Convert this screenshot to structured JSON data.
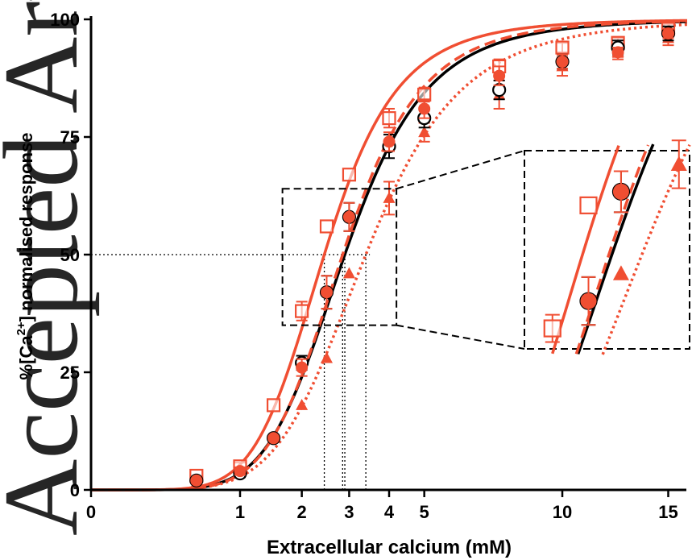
{
  "watermark": {
    "text": "Accepted Article",
    "color": "#b8c2d8"
  },
  "chart_data": {
    "type": "line",
    "ylabel_parts": {
      "prefix": "%[Ca",
      "superscript": "2+",
      "suffix": "] normalised response"
    },
    "xlabel": "Extracellular calcium (mM)",
    "x_scale": "sqrt",
    "xlim": [
      0,
      16
    ],
    "ylim": [
      0,
      100
    ],
    "x_ticks": [
      0,
      1,
      2,
      3,
      4,
      5,
      10,
      15
    ],
    "y_ticks": [
      0,
      25,
      50,
      75,
      100
    ],
    "grid": false,
    "legend": "none",
    "inset": {
      "x_range": [
        1.65,
        4.2
      ],
      "y_range": [
        35,
        64
      ]
    },
    "reference_line": {
      "y": 50
    },
    "series": [
      {
        "id": "black",
        "color": "#000000",
        "marker": "open-circle",
        "line_style": "solid",
        "ec50": 2.9,
        "hill": 3.1,
        "points": [
          {
            "x": 0.5,
            "y": 2,
            "err": 0
          },
          {
            "x": 1.0,
            "y": 3.5,
            "err": 0.8
          },
          {
            "x": 1.5,
            "y": 11,
            "err": 0
          },
          {
            "x": 2.0,
            "y": 27,
            "err": 1.5
          },
          {
            "x": 2.5,
            "y": 42,
            "err": 3.5
          },
          {
            "x": 3.0,
            "y": 58,
            "err": 3
          },
          {
            "x": 4.0,
            "y": 73,
            "err": 2.5
          },
          {
            "x": 5.0,
            "y": 79,
            "err": 2
          },
          {
            "x": 7.5,
            "y": 85,
            "err": 2
          },
          {
            "x": 10.0,
            "y": 91,
            "err": 1.5
          },
          {
            "x": 12.5,
            "y": 94,
            "err": 1.5
          },
          {
            "x": 15.0,
            "y": 97,
            "err": 1.5
          }
        ]
      },
      {
        "id": "red-filled-circle",
        "color": "#f04e32",
        "marker": "filled-circle",
        "line_style": "dashed",
        "ec50": 2.85,
        "hill": 3.2,
        "points": [
          {
            "x": 0.5,
            "y": 2,
            "err": 0
          },
          {
            "x": 1.0,
            "y": 4,
            "err": 0.8
          },
          {
            "x": 1.5,
            "y": 11,
            "err": 0
          },
          {
            "x": 2.0,
            "y": 26,
            "err": 1.8
          },
          {
            "x": 2.5,
            "y": 42,
            "err": 3.5
          },
          {
            "x": 3.0,
            "y": 58,
            "err": 3
          },
          {
            "x": 4.0,
            "y": 74,
            "err": 2
          },
          {
            "x": 5.0,
            "y": 81,
            "err": 2
          },
          {
            "x": 7.5,
            "y": 88,
            "err": 2
          },
          {
            "x": 10.0,
            "y": 91,
            "err": 1.5
          },
          {
            "x": 12.5,
            "y": 93,
            "err": 1
          },
          {
            "x": 15.0,
            "y": 97,
            "err": 1
          }
        ]
      },
      {
        "id": "red-open-square",
        "color": "#f04e32",
        "marker": "open-square",
        "line_style": "solid",
        "ec50": 2.45,
        "hill": 3.2,
        "points": [
          {
            "x": 0.5,
            "y": 3,
            "err": 0
          },
          {
            "x": 1.0,
            "y": 5,
            "err": 0.8
          },
          {
            "x": 1.5,
            "y": 18,
            "err": 0
          },
          {
            "x": 2.0,
            "y": 38,
            "err": 2
          },
          {
            "x": 2.5,
            "y": 56,
            "err": 0
          },
          {
            "x": 3.0,
            "y": 67,
            "err": 0
          },
          {
            "x": 4.0,
            "y": 79,
            "err": 2
          },
          {
            "x": 5.0,
            "y": 84,
            "err": 1.5
          },
          {
            "x": 7.5,
            "y": 90,
            "err": 1.5
          },
          {
            "x": 10.0,
            "y": 94,
            "err": 1
          },
          {
            "x": 12.5,
            "y": 95,
            "err": 1
          },
          {
            "x": 15.0,
            "y": 98,
            "err": 1
          }
        ]
      },
      {
        "id": "red-filled-triangle",
        "color": "#f04e32",
        "marker": "filled-triangle",
        "line_style": "dotted",
        "ec50": 3.4,
        "hill": 2.9,
        "points": [
          {
            "x": 0.5,
            "y": 1.5,
            "err": 0
          },
          {
            "x": 1.0,
            "y": 4,
            "err": 0.8
          },
          {
            "x": 1.5,
            "y": 11,
            "err": 0
          },
          {
            "x": 2.0,
            "y": 18,
            "err": 0
          },
          {
            "x": 2.5,
            "y": 28,
            "err": 0
          },
          {
            "x": 3.0,
            "y": 46,
            "err": 0
          },
          {
            "x": 4.0,
            "y": 62,
            "err": 3.5
          },
          {
            "x": 5.0,
            "y": 76,
            "err": 2
          },
          {
            "x": 7.5,
            "y": 84,
            "err": 3
          },
          {
            "x": 10.0,
            "y": 90,
            "err": 2
          },
          {
            "x": 12.5,
            "y": 93,
            "err": 1.5
          },
          {
            "x": 15.0,
            "y": 96,
            "err": 1.5
          }
        ]
      }
    ]
  }
}
